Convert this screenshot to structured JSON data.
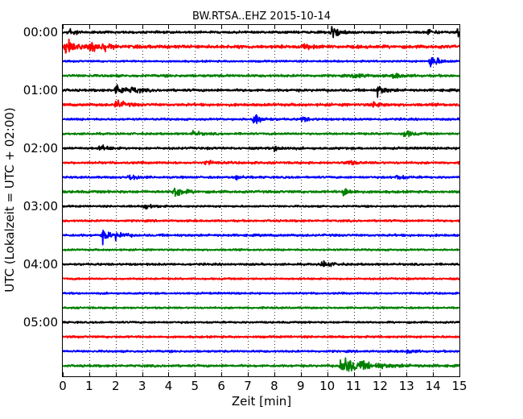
{
  "chart_data": {
    "type": "line",
    "title": "BW.RTSA..EHZ 2015-10-14",
    "xlabel": "Zeit  [min]",
    "ylabel": "UTC (Lokalzeit = UTC + 02:00)",
    "xlim": [
      0,
      15
    ],
    "x_ticks": [
      "0",
      "1",
      "2",
      "3",
      "4",
      "5",
      "6",
      "7",
      "8",
      "9",
      "10",
      "11",
      "12",
      "13",
      "14",
      "15"
    ],
    "y_tick_labels": [
      "00:00",
      "01:00",
      "02:00",
      "03:00",
      "04:00",
      "05:00"
    ],
    "y_tick_rows": [
      0,
      4,
      8,
      12,
      16,
      20
    ],
    "grid": "vertical dotted",
    "trace_interval_min": 15,
    "trace_colors": [
      "#000000",
      "#ff0000",
      "#0000ff",
      "#008000"
    ],
    "series": [
      {
        "start": "00:00",
        "color": "#000000",
        "noise": 1.0,
        "events": [
          {
            "t": 0.2,
            "a": 4
          },
          {
            "t": 10.1,
            "a": 9
          },
          {
            "t": 14.9,
            "a": 5
          },
          {
            "t": 13.8,
            "a": 2.5
          }
        ]
      },
      {
        "start": "00:15",
        "color": "#ff0000",
        "noise": 1.4,
        "events": [
          {
            "t": 0.1,
            "a": 8
          },
          {
            "t": 1.0,
            "a": 7
          },
          {
            "t": 1.5,
            "a": 3
          },
          {
            "t": 9.1,
            "a": 2.5
          }
        ]
      },
      {
        "start": "00:30",
        "color": "#0000ff",
        "noise": 0.8,
        "events": [
          {
            "t": 13.9,
            "a": 7
          }
        ]
      },
      {
        "start": "00:45",
        "color": "#008000",
        "noise": 1.1,
        "events": [
          {
            "t": 11.0,
            "a": 4
          },
          {
            "t": 12.5,
            "a": 3
          }
        ]
      },
      {
        "start": "01:00",
        "color": "#000000",
        "noise": 1.1,
        "events": [
          {
            "t": 2.0,
            "a": 7
          },
          {
            "t": 2.6,
            "a": 3
          },
          {
            "t": 11.9,
            "a": 5
          }
        ]
      },
      {
        "start": "01:15",
        "color": "#ff0000",
        "noise": 1.2,
        "events": [
          {
            "t": 2.0,
            "a": 5
          },
          {
            "t": 11.7,
            "a": 3
          }
        ]
      },
      {
        "start": "01:30",
        "color": "#0000ff",
        "noise": 0.9,
        "events": [
          {
            "t": 7.2,
            "a": 7
          },
          {
            "t": 9.0,
            "a": 2.5
          }
        ]
      },
      {
        "start": "01:45",
        "color": "#008000",
        "noise": 0.9,
        "events": [
          {
            "t": 4.9,
            "a": 2.5
          },
          {
            "t": 12.9,
            "a": 4
          }
        ]
      },
      {
        "start": "02:00",
        "color": "#000000",
        "noise": 1.0,
        "events": [
          {
            "t": 1.4,
            "a": 3
          },
          {
            "t": 8.0,
            "a": 2.5
          }
        ]
      },
      {
        "start": "02:15",
        "color": "#ff0000",
        "noise": 1.0,
        "events": [
          {
            "t": 10.7,
            "a": 3
          },
          {
            "t": 5.4,
            "a": 2
          }
        ]
      },
      {
        "start": "02:30",
        "color": "#0000ff",
        "noise": 0.9,
        "events": [
          {
            "t": 2.5,
            "a": 3.5
          },
          {
            "t": 6.5,
            "a": 2.5
          },
          {
            "t": 12.6,
            "a": 2.5
          }
        ]
      },
      {
        "start": "02:45",
        "color": "#008000",
        "noise": 1.1,
        "events": [
          {
            "t": 4.2,
            "a": 7
          },
          {
            "t": 10.6,
            "a": 4
          }
        ]
      },
      {
        "start": "03:00",
        "color": "#000000",
        "noise": 0.8,
        "events": [
          {
            "t": 3.1,
            "a": 3
          }
        ]
      },
      {
        "start": "03:15",
        "color": "#ff0000",
        "noise": 0.9,
        "events": []
      },
      {
        "start": "03:30",
        "color": "#0000ff",
        "noise": 1.0,
        "events": [
          {
            "t": 1.5,
            "a": 6
          },
          {
            "t": 2.0,
            "a": 3
          }
        ]
      },
      {
        "start": "03:45",
        "color": "#008000",
        "noise": 0.8,
        "events": []
      },
      {
        "start": "04:00",
        "color": "#000000",
        "noise": 0.9,
        "events": [
          {
            "t": 9.8,
            "a": 4
          }
        ]
      },
      {
        "start": "04:15",
        "color": "#ff0000",
        "noise": 0.8,
        "events": []
      },
      {
        "start": "04:30",
        "color": "#0000ff",
        "noise": 0.8,
        "events": []
      },
      {
        "start": "04:45",
        "color": "#008000",
        "noise": 0.8,
        "events": []
      },
      {
        "start": "05:00",
        "color": "#000000",
        "noise": 0.8,
        "events": []
      },
      {
        "start": "05:15",
        "color": "#ff0000",
        "noise": 0.9,
        "events": []
      },
      {
        "start": "05:30",
        "color": "#0000ff",
        "noise": 0.9,
        "events": [
          {
            "t": 13.0,
            "a": 2
          }
        ]
      },
      {
        "start": "05:45",
        "color": "#008000",
        "noise": 1.0,
        "events": [
          {
            "t": 10.5,
            "a": 8,
            "long": true
          }
        ]
      }
    ]
  }
}
